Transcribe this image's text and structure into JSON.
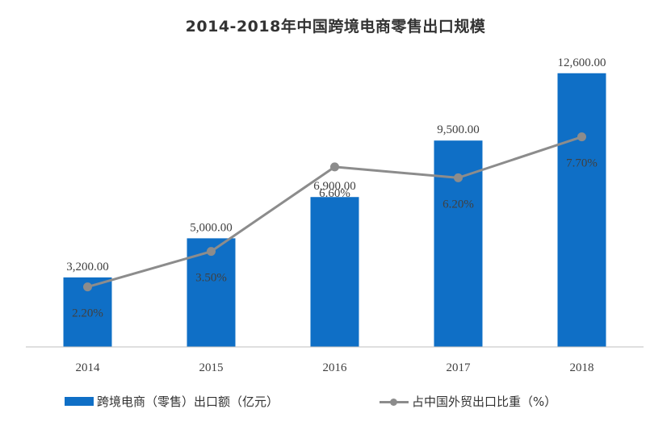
{
  "title": "2014-2018年中国跨境电商零售出口规模",
  "colors": {
    "bar": "#0f6fc6",
    "line": "#8c8c8c",
    "axis": "#bfbfbf",
    "text": "#404040"
  },
  "legend": {
    "bar_label": "跨境电商（零售）出口额（亿元）",
    "line_label": "占中国外贸出口比重（%）"
  },
  "chart_data": {
    "type": "bar+line",
    "title": "2014-2018年中国跨境电商零售出口规模",
    "categories": [
      "2014",
      "2015",
      "2016",
      "2017",
      "2018"
    ],
    "series": [
      {
        "name": "跨境电商（零售）出口额（亿元）",
        "type": "bar",
        "values": [
          3200,
          5000,
          6900,
          9500,
          12600
        ],
        "labels": [
          "3,200.00",
          "5,000.00",
          "6,900.00",
          "9,500.00",
          "12,600.00"
        ]
      },
      {
        "name": "占中国外贸出口比重（%）",
        "type": "line",
        "values": [
          2.2,
          3.5,
          6.6,
          6.2,
          7.7
        ],
        "labels": [
          "2.20%",
          "3.50%",
          "6.60%",
          "6.20%",
          "7.70%"
        ]
      }
    ],
    "bar_axis_range": [
      0,
      13000
    ],
    "line_axis_range": [
      0,
      10.5
    ],
    "grid": false,
    "legend_position": "bottom"
  }
}
